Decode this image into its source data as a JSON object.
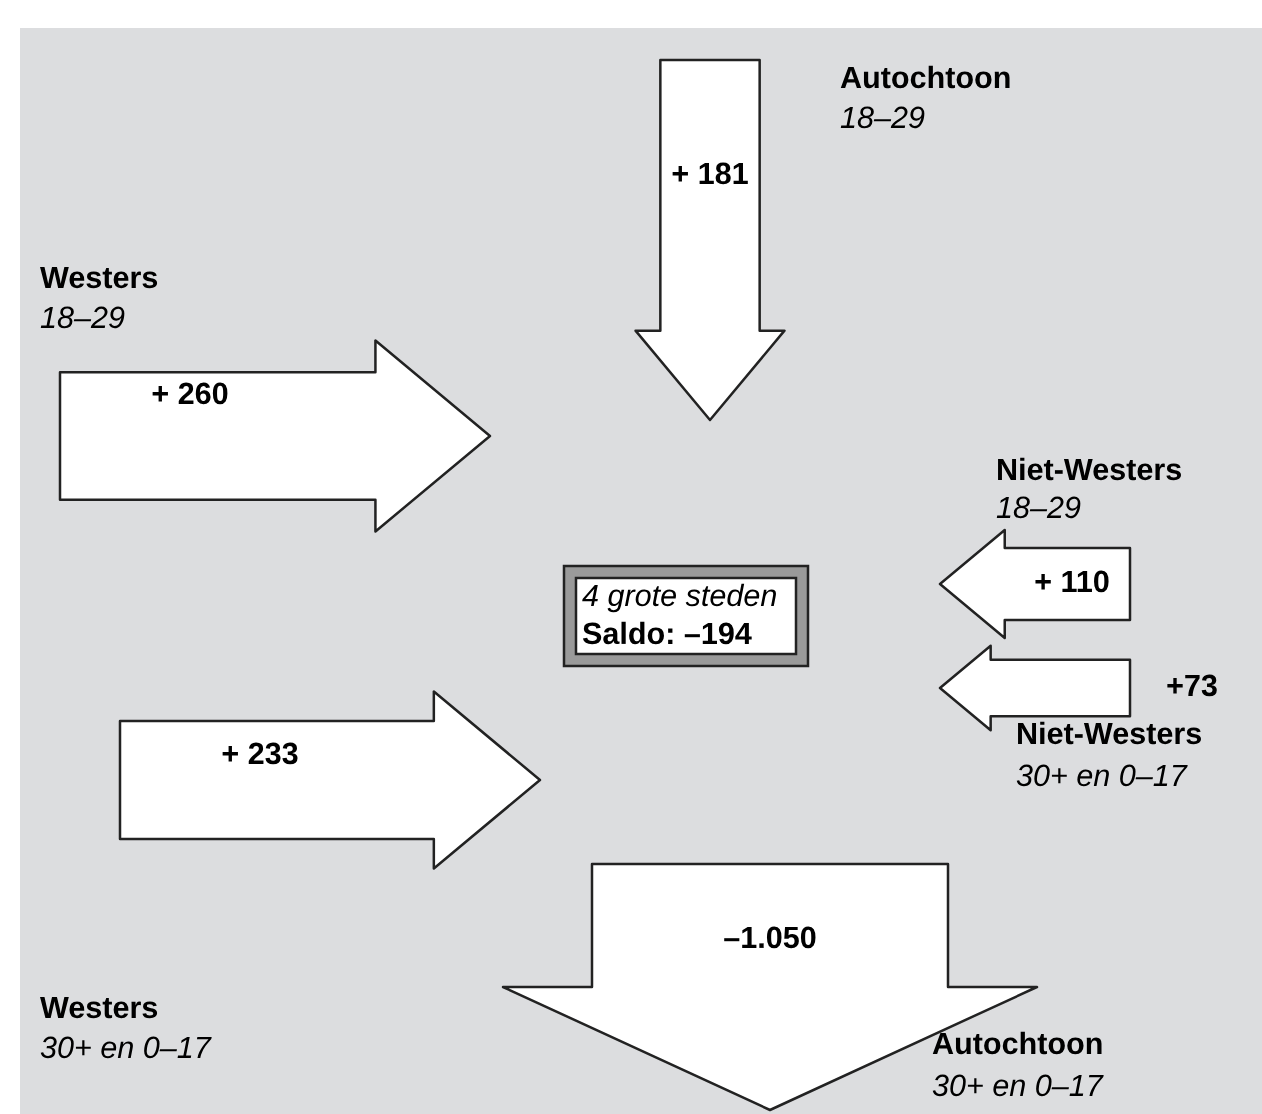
{
  "chart_data": {
    "type": "other",
    "categories": [
      "Autochtoon",
      "Westers",
      "Niet-Westers",
      "Niet-Westers",
      "Westers",
      "Autochtoon"
    ],
    "values": [
      181,
      260,
      110,
      73,
      233,
      -1050
    ],
    "value_labels": [
      "+ 181",
      "+ 260",
      "+ 110",
      "+73",
      "+ 233",
      "–1.050"
    ],
    "annotations": [
      "18–29",
      "18–29",
      "18–29",
      "30+ en 0–17",
      "30+ en 0–17",
      "30+ en 0–17",
      "4 grote steden",
      "Saldo: –194"
    ]
  }
}
